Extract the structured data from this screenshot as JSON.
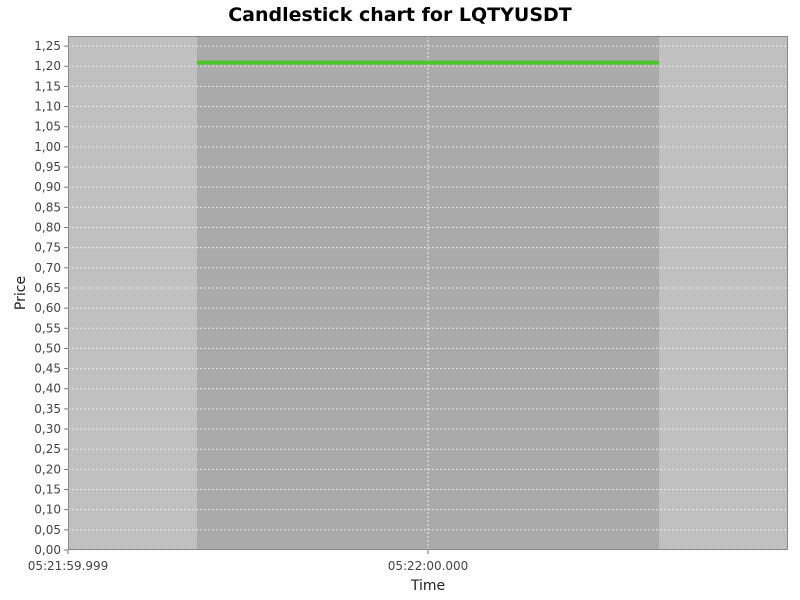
{
  "chart_data": {
    "type": "candlestick",
    "title": "Candlestick chart for LQTYUSDT",
    "xlabel": "Time",
    "ylabel": "Price",
    "ylim": [
      0,
      1.275
    ],
    "y_ticks": [
      "0,00",
      "0,05",
      "0,10",
      "0,15",
      "0,20",
      "0,25",
      "0,30",
      "0,35",
      "0,40",
      "0,45",
      "0,50",
      "0,55",
      "0,60",
      "0,65",
      "0,70",
      "0,75",
      "0,80",
      "0,85",
      "0,90",
      "0,95",
      "1,00",
      "1,05",
      "1,10",
      "1,15",
      "1,20",
      "1,25"
    ],
    "x_ticks": [
      "05:21:59.999",
      "05:22:00.000"
    ],
    "grid": true,
    "candles": [
      {
        "time": "05:22:00.000",
        "open": 1.209,
        "high": 1.212,
        "low": 1.207,
        "close": 1.209
      }
    ],
    "colors": {
      "plot_background": "#c0c0c0",
      "candle_band": "#aaaaaa",
      "up": "#4ec52c",
      "down": "#e03030",
      "gridline": "#e8e8e8"
    }
  }
}
